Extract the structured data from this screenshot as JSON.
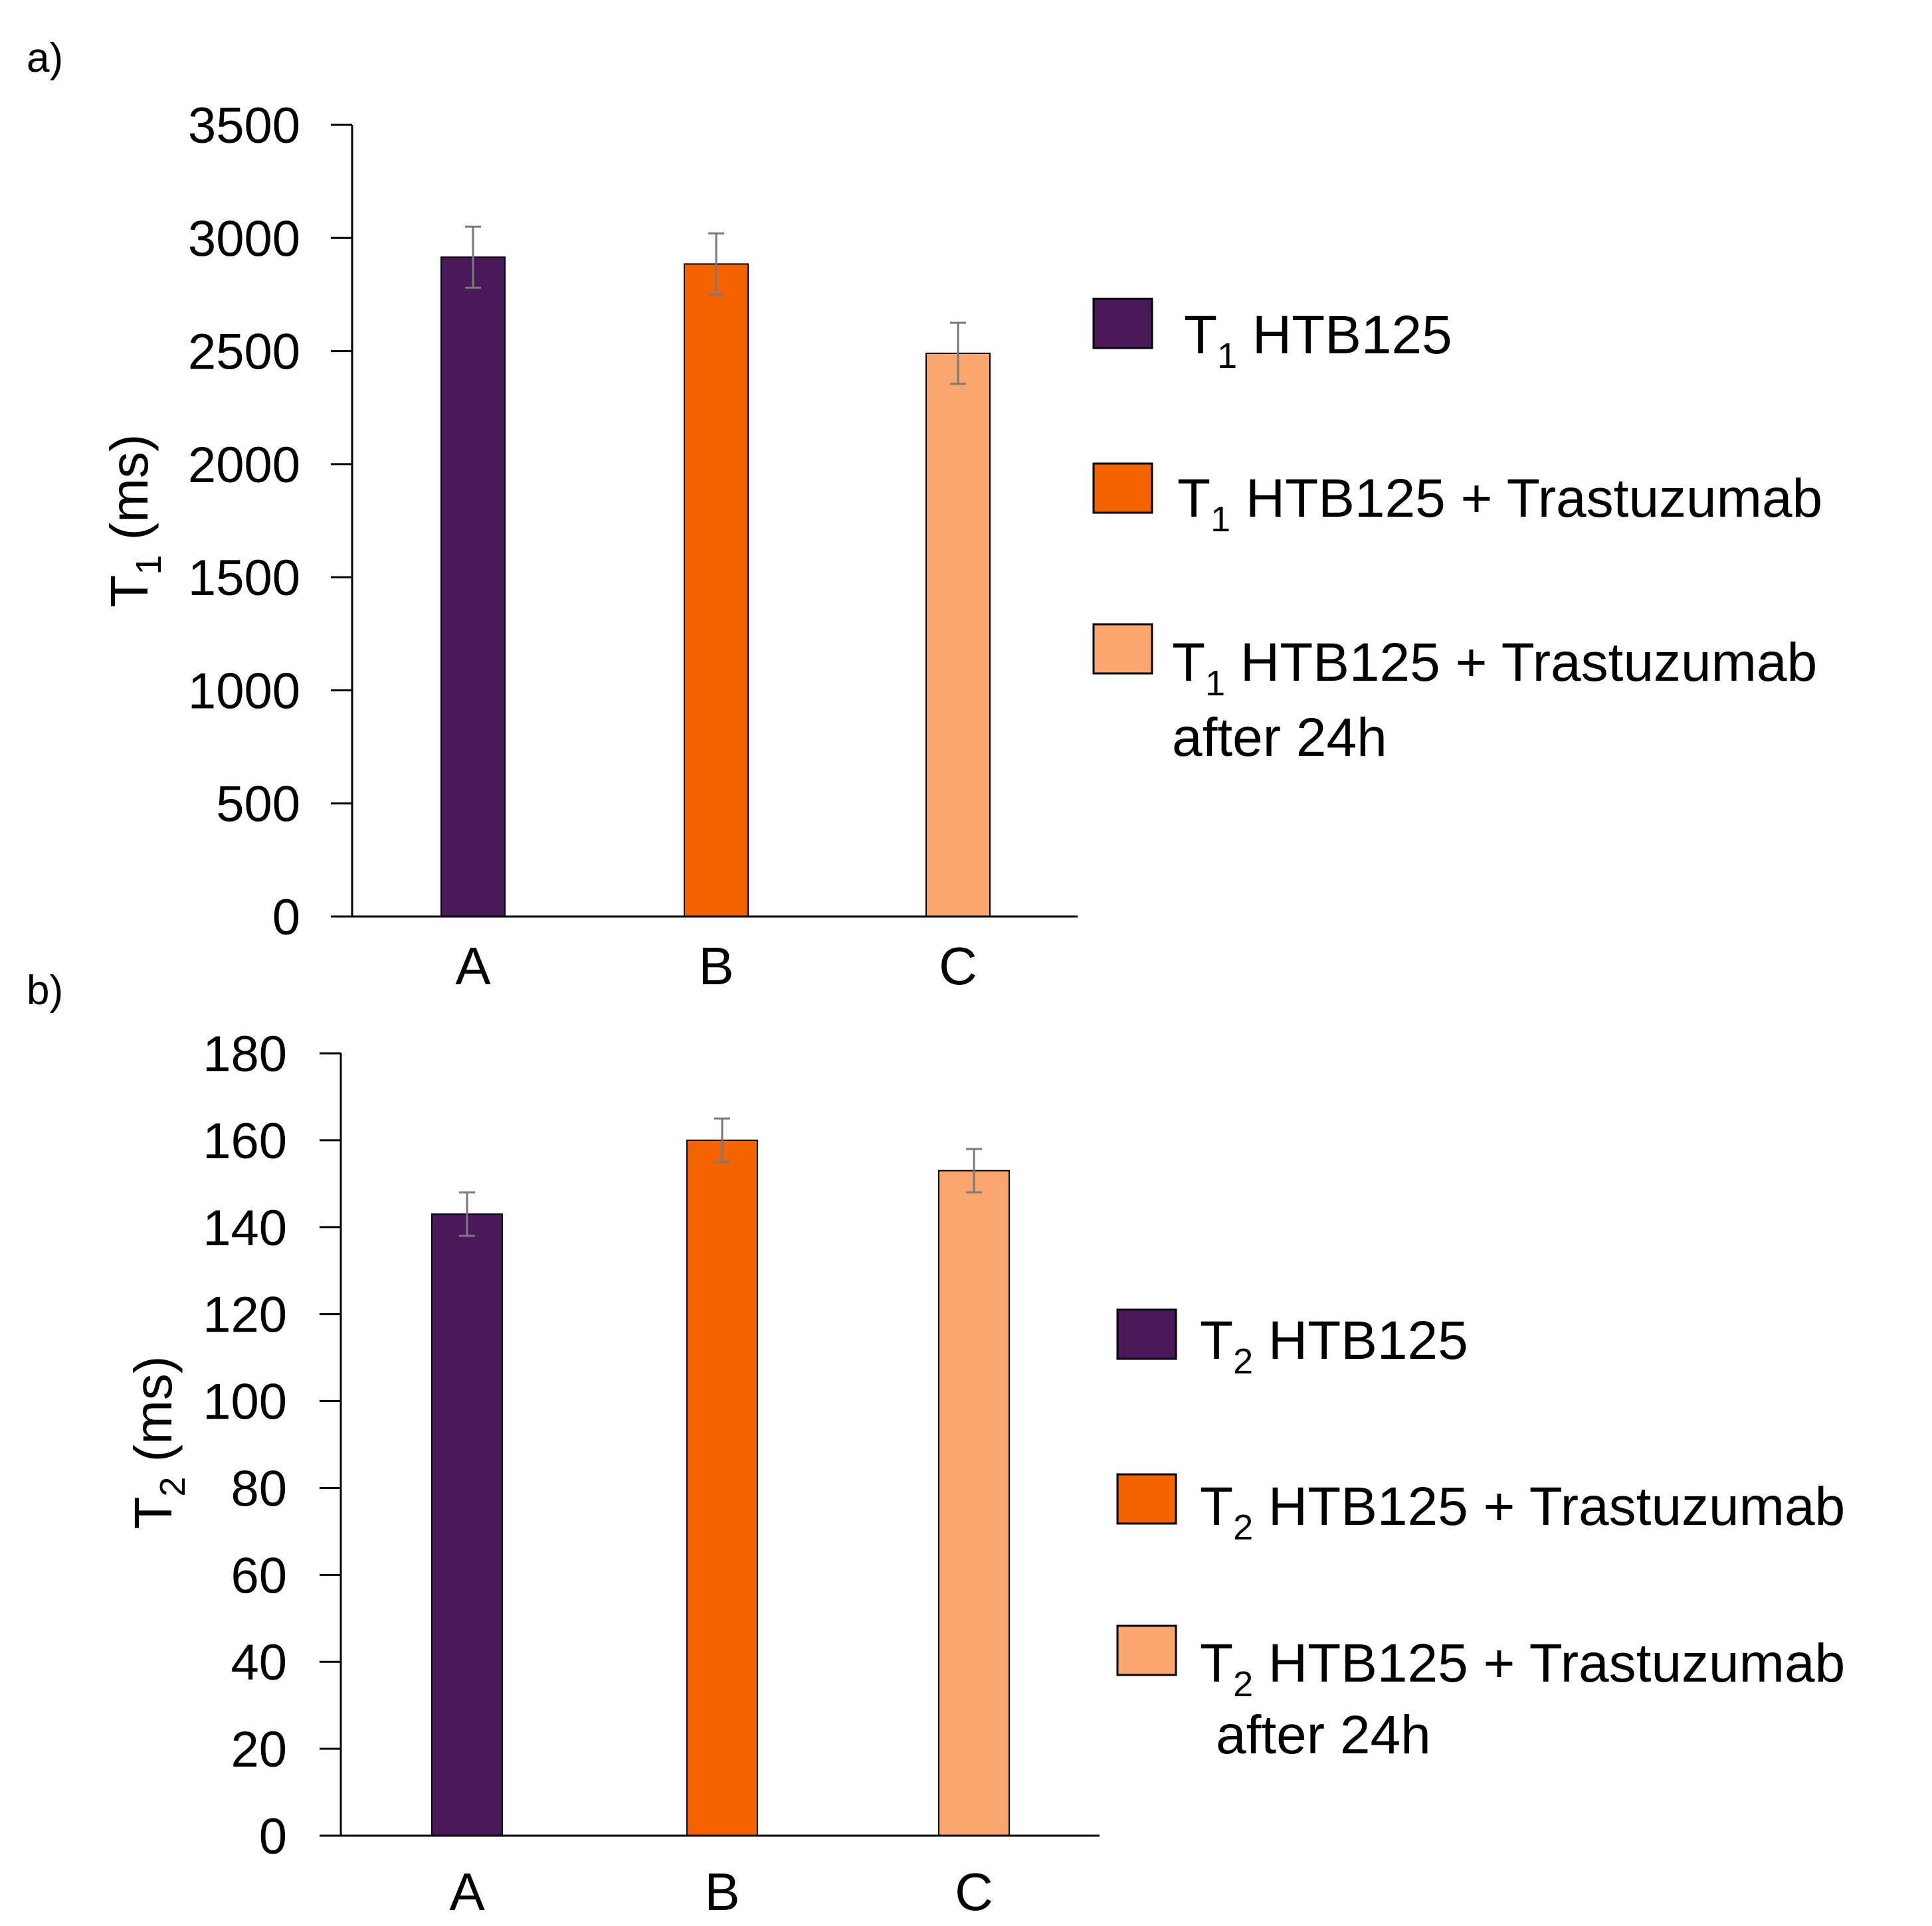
{
  "chart_data": [
    {
      "panel_label": "a)",
      "type": "bar",
      "ylabel": {
        "main": "T",
        "sub": "1",
        "rest": " (ms)"
      },
      "ylim": [
        0,
        3500
      ],
      "ticks": [
        0,
        500,
        1000,
        1500,
        2000,
        2500,
        3000,
        3500
      ],
      "categories": [
        "A",
        "B",
        "C"
      ],
      "values": [
        2915,
        2885,
        2490
      ],
      "errors": [
        135,
        135,
        135
      ],
      "colors": [
        "#4b185b",
        "#f56200",
        "#fba66f"
      ],
      "legend": [
        {
          "main": "T",
          "sub": "1",
          "text": " HTB125",
          "line2": ""
        },
        {
          "main": "T",
          "sub": "1",
          "text": " HTB125 + Trastuzumab",
          "line2": ""
        },
        {
          "main": "T",
          "sub": "1",
          "text": " HTB125 + Trastuzumab",
          "line2": "after 24h"
        }
      ]
    },
    {
      "panel_label": "b)",
      "type": "bar",
      "ylabel": {
        "main": "T",
        "sub": "2",
        "rest": " (ms)"
      },
      "ylim": [
        0,
        180
      ],
      "ticks": [
        0,
        20,
        40,
        60,
        80,
        100,
        120,
        140,
        160,
        180
      ],
      "categories": [
        "A",
        "B",
        "C"
      ],
      "values": [
        143,
        160,
        153
      ],
      "errors": [
        5,
        5,
        5
      ],
      "colors": [
        "#4b185b",
        "#f56200",
        "#fba66f"
      ],
      "legend": [
        {
          "main": "T",
          "sub": "2",
          "text": " HTB125",
          "line2": ""
        },
        {
          "main": "T",
          "sub": "2",
          "text": " HTB125 + Trastuzumab",
          "line2": ""
        },
        {
          "main": "T",
          "sub": "2",
          "text": " HTB125 + Trastuzumab",
          "line2": "after 24h"
        }
      ]
    }
  ]
}
